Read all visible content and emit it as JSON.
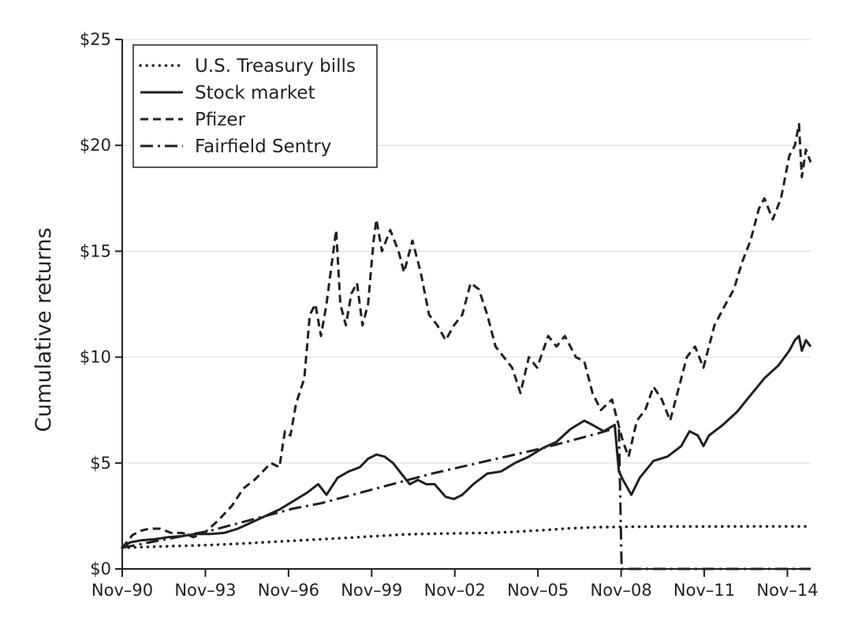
{
  "chart_data": {
    "type": "line",
    "title": "",
    "xlabel": "",
    "ylabel": "Cumulative returns",
    "x_ticks": [
      "Nov–90",
      "Nov–93",
      "Nov–96",
      "Nov–99",
      "Nov–02",
      "Nov–05",
      "Nov–08",
      "Nov–11",
      "Nov–14"
    ],
    "y_ticks": [
      "$0",
      "$5",
      "$10",
      "$15",
      "$20",
      "$25"
    ],
    "xlim": [
      1990.83,
      2015.67
    ],
    "ylim": [
      0,
      25
    ],
    "grid": true,
    "legend_position": "top-left",
    "series": [
      {
        "name": "U.S. Treasury bills",
        "dash": "dotted",
        "points": [
          [
            1990.83,
            1.0
          ],
          [
            1992.0,
            1.05
          ],
          [
            1993.0,
            1.09
          ],
          [
            1994.0,
            1.13
          ],
          [
            1995.0,
            1.19
          ],
          [
            1996.0,
            1.26
          ],
          [
            1997.0,
            1.33
          ],
          [
            1998.0,
            1.4
          ],
          [
            1999.0,
            1.47
          ],
          [
            2000.0,
            1.55
          ],
          [
            2001.0,
            1.63
          ],
          [
            2002.0,
            1.66
          ],
          [
            2003.0,
            1.68
          ],
          [
            2004.0,
            1.7
          ],
          [
            2005.0,
            1.75
          ],
          [
            2006.0,
            1.83
          ],
          [
            2007.0,
            1.92
          ],
          [
            2008.0,
            1.97
          ],
          [
            2009.0,
            1.99
          ],
          [
            2010.0,
            2.0
          ],
          [
            2011.0,
            2.0
          ],
          [
            2012.0,
            2.0
          ],
          [
            2013.0,
            2.01
          ],
          [
            2014.0,
            2.01
          ],
          [
            2015.5,
            2.01
          ]
        ]
      },
      {
        "name": "Stock market",
        "dash": "solid",
        "points": [
          [
            1990.83,
            1.0
          ],
          [
            1991.1,
            1.25
          ],
          [
            1991.5,
            1.35
          ],
          [
            1992.0,
            1.4
          ],
          [
            1992.5,
            1.5
          ],
          [
            1993.0,
            1.55
          ],
          [
            1993.5,
            1.65
          ],
          [
            1994.0,
            1.65
          ],
          [
            1994.5,
            1.7
          ],
          [
            1995.0,
            1.9
          ],
          [
            1995.5,
            2.2
          ],
          [
            1996.0,
            2.5
          ],
          [
            1996.5,
            2.8
          ],
          [
            1997.0,
            3.2
          ],
          [
            1997.5,
            3.6
          ],
          [
            1997.9,
            4.0
          ],
          [
            1998.2,
            3.5
          ],
          [
            1998.6,
            4.3
          ],
          [
            1999.0,
            4.6
          ],
          [
            1999.4,
            4.8
          ],
          [
            1999.7,
            5.2
          ],
          [
            2000.0,
            5.4
          ],
          [
            2000.3,
            5.3
          ],
          [
            2000.6,
            5.0
          ],
          [
            2000.9,
            4.5
          ],
          [
            2001.2,
            4.0
          ],
          [
            2001.5,
            4.2
          ],
          [
            2001.8,
            4.0
          ],
          [
            2002.1,
            4.0
          ],
          [
            2002.5,
            3.4
          ],
          [
            2002.8,
            3.3
          ],
          [
            2003.1,
            3.5
          ],
          [
            2003.5,
            4.0
          ],
          [
            2004.0,
            4.5
          ],
          [
            2004.5,
            4.6
          ],
          [
            2005.0,
            5.0
          ],
          [
            2005.5,
            5.3
          ],
          [
            2006.0,
            5.7
          ],
          [
            2006.5,
            6.0
          ],
          [
            2007.0,
            6.6
          ],
          [
            2007.5,
            7.0
          ],
          [
            2007.8,
            6.8
          ],
          [
            2008.2,
            6.5
          ],
          [
            2008.6,
            6.8
          ],
          [
            2008.75,
            4.6
          ],
          [
            2008.9,
            4.2
          ],
          [
            2009.2,
            3.5
          ],
          [
            2009.5,
            4.3
          ],
          [
            2010.0,
            5.1
          ],
          [
            2010.5,
            5.3
          ],
          [
            2011.0,
            5.8
          ],
          [
            2011.3,
            6.5
          ],
          [
            2011.6,
            6.3
          ],
          [
            2011.8,
            5.8
          ],
          [
            2012.0,
            6.3
          ],
          [
            2012.5,
            6.8
          ],
          [
            2013.0,
            7.4
          ],
          [
            2013.5,
            8.2
          ],
          [
            2014.0,
            9.0
          ],
          [
            2014.5,
            9.6
          ],
          [
            2014.9,
            10.3
          ],
          [
            2015.1,
            10.8
          ],
          [
            2015.25,
            11.0
          ],
          [
            2015.35,
            10.3
          ],
          [
            2015.5,
            10.8
          ],
          [
            2015.67,
            10.5
          ]
        ]
      },
      {
        "name": "Pfizer",
        "dash": "dashed",
        "points": [
          [
            1990.83,
            1.0
          ],
          [
            1991.2,
            1.6
          ],
          [
            1991.5,
            1.8
          ],
          [
            1991.8,
            1.9
          ],
          [
            1992.2,
            1.9
          ],
          [
            1992.6,
            1.7
          ],
          [
            1993.0,
            1.7
          ],
          [
            1993.4,
            1.5
          ],
          [
            1993.8,
            1.7
          ],
          [
            1994.3,
            2.3
          ],
          [
            1994.8,
            3.0
          ],
          [
            1995.2,
            3.8
          ],
          [
            1995.6,
            4.2
          ],
          [
            1995.9,
            4.6
          ],
          [
            1996.2,
            5.0
          ],
          [
            1996.5,
            4.8
          ],
          [
            1996.7,
            6.5
          ],
          [
            1996.9,
            6.3
          ],
          [
            1997.1,
            7.8
          ],
          [
            1997.4,
            9.0
          ],
          [
            1997.6,
            12.0
          ],
          [
            1997.8,
            12.5
          ],
          [
            1998.0,
            11.0
          ],
          [
            1998.2,
            12.5
          ],
          [
            1998.4,
            14.5
          ],
          [
            1998.55,
            16.0
          ],
          [
            1998.7,
            12.5
          ],
          [
            1998.9,
            11.5
          ],
          [
            1999.1,
            13.0
          ],
          [
            1999.3,
            13.5
          ],
          [
            1999.5,
            11.5
          ],
          [
            1999.7,
            12.5
          ],
          [
            1999.9,
            15.5
          ],
          [
            2000.0,
            16.5
          ],
          [
            2000.2,
            15.0
          ],
          [
            2000.5,
            16.0
          ],
          [
            2000.8,
            15.0
          ],
          [
            2001.0,
            14.0
          ],
          [
            2001.3,
            15.5
          ],
          [
            2001.6,
            14.0
          ],
          [
            2001.9,
            12.0
          ],
          [
            2002.2,
            11.5
          ],
          [
            2002.5,
            10.8
          ],
          [
            2002.8,
            11.5
          ],
          [
            2003.1,
            12.0
          ],
          [
            2003.4,
            13.5
          ],
          [
            2003.7,
            13.2
          ],
          [
            2004.0,
            12.0
          ],
          [
            2004.3,
            10.5
          ],
          [
            2004.6,
            10.0
          ],
          [
            2004.9,
            9.5
          ],
          [
            2005.2,
            8.3
          ],
          [
            2005.5,
            10.0
          ],
          [
            2005.8,
            9.5
          ],
          [
            2006.2,
            11.0
          ],
          [
            2006.5,
            10.5
          ],
          [
            2006.8,
            11.0
          ],
          [
            2007.2,
            10.0
          ],
          [
            2007.5,
            9.8
          ],
          [
            2007.8,
            8.3
          ],
          [
            2008.1,
            7.5
          ],
          [
            2008.5,
            8.0
          ],
          [
            2008.7,
            7.0
          ],
          [
            2008.9,
            6.0
          ],
          [
            2009.1,
            5.3
          ],
          [
            2009.4,
            7.0
          ],
          [
            2009.7,
            7.5
          ],
          [
            2010.0,
            8.6
          ],
          [
            2010.3,
            8.0
          ],
          [
            2010.6,
            7.0
          ],
          [
            2010.9,
            8.5
          ],
          [
            2011.2,
            10.0
          ],
          [
            2011.5,
            10.5
          ],
          [
            2011.8,
            9.5
          ],
          [
            2012.2,
            11.5
          ],
          [
            2012.6,
            12.5
          ],
          [
            2012.9,
            13.2
          ],
          [
            2013.2,
            14.5
          ],
          [
            2013.5,
            15.5
          ],
          [
            2013.8,
            17.0
          ],
          [
            2014.0,
            17.5
          ],
          [
            2014.3,
            16.5
          ],
          [
            2014.6,
            17.5
          ],
          [
            2014.9,
            19.5
          ],
          [
            2015.1,
            20.0
          ],
          [
            2015.25,
            21.0
          ],
          [
            2015.35,
            18.5
          ],
          [
            2015.5,
            19.8
          ],
          [
            2015.67,
            19.2
          ]
        ]
      },
      {
        "name": "Fairfield Sentry",
        "dash": "dashdot",
        "points": [
          [
            1990.83,
            1.0
          ],
          [
            1992.0,
            1.3
          ],
          [
            1993.0,
            1.55
          ],
          [
            1994.0,
            1.8
          ],
          [
            1995.0,
            2.15
          ],
          [
            1996.0,
            2.5
          ],
          [
            1997.0,
            2.85
          ],
          [
            1998.0,
            3.1
          ],
          [
            1999.0,
            3.45
          ],
          [
            2000.0,
            3.8
          ],
          [
            2001.0,
            4.15
          ],
          [
            2002.0,
            4.5
          ],
          [
            2003.0,
            4.8
          ],
          [
            2004.0,
            5.1
          ],
          [
            2005.0,
            5.4
          ],
          [
            2006.0,
            5.7
          ],
          [
            2007.0,
            6.05
          ],
          [
            2008.0,
            6.4
          ],
          [
            2008.75,
            6.7
          ],
          [
            2008.85,
            0.0
          ],
          [
            2015.67,
            0.0
          ]
        ]
      }
    ]
  }
}
